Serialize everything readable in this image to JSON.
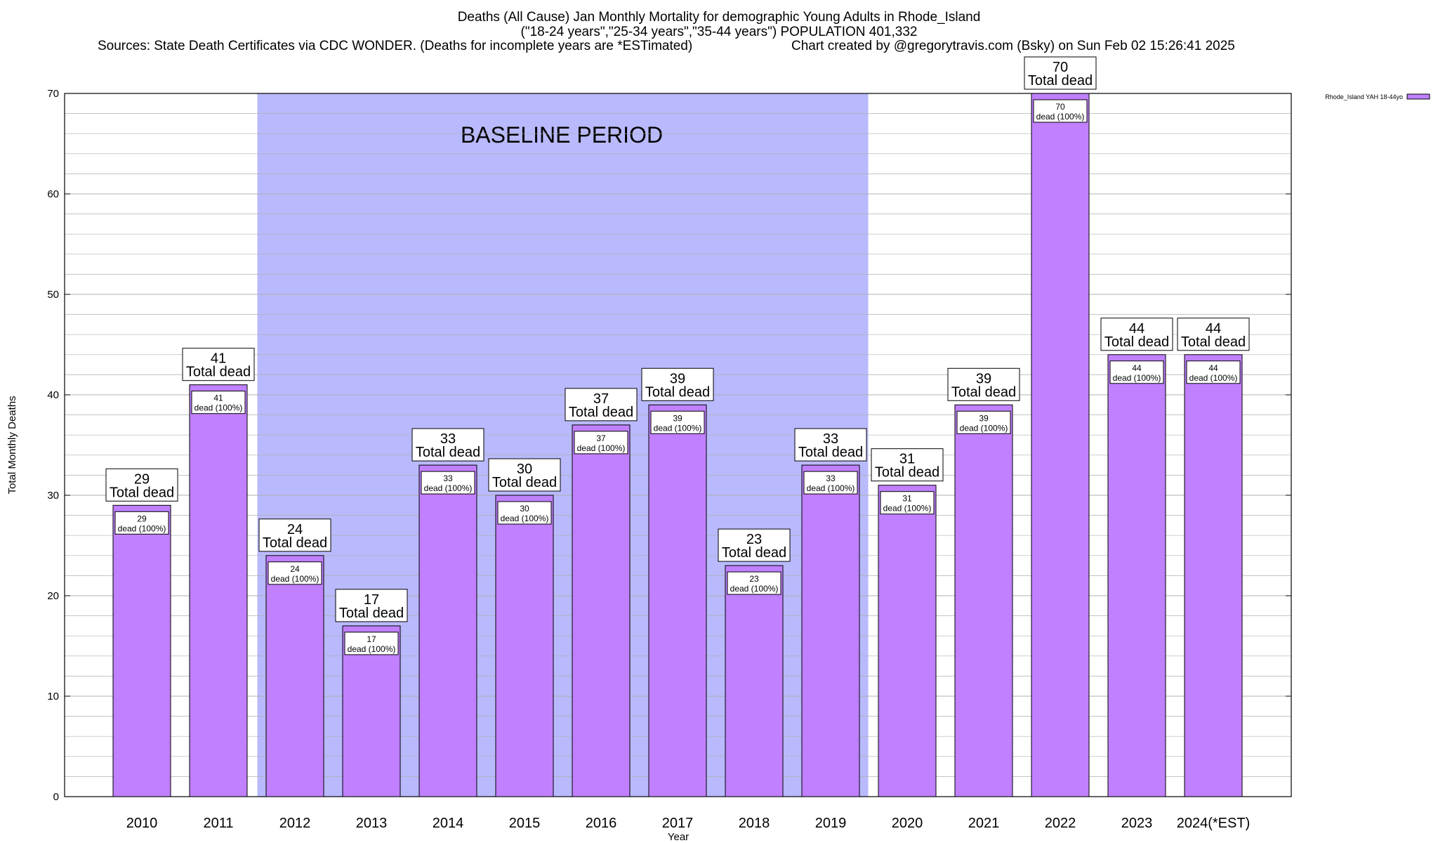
{
  "chart_data": {
    "type": "bar",
    "title_lines": [
      "Deaths (All Cause) Jan Monthly Mortality for demographic Young Adults in Rhode_Island",
      "(\"18-24 years\",\"25-34 years\",\"35-44 years\") POPULATION 401,332"
    ],
    "sources": "Sources: State Death Certificates via CDC WONDER. (Deaths for incomplete years are *ESTimated)",
    "credit": "Chart created by @gregorytravis.com (Bsky) on Sun Feb 02 15:26:41 2025",
    "xlabel": "Year",
    "ylabel": "Total Monthly Deaths",
    "ylim": [
      0,
      70
    ],
    "yticks": [
      0,
      10,
      20,
      30,
      40,
      50,
      60,
      70
    ],
    "grid": true,
    "categories": [
      "2010",
      "2011",
      "2012",
      "2013",
      "2014",
      "2015",
      "2016",
      "2017",
      "2018",
      "2019",
      "2020",
      "2021",
      "2022",
      "2023",
      "2024(*EST)"
    ],
    "series": [
      {
        "name": "Rhode_Island YAH 18-44yo",
        "values": [
          29,
          41,
          24,
          17,
          33,
          30,
          37,
          39,
          23,
          33,
          31,
          39,
          70,
          44,
          44
        ]
      }
    ],
    "total_label": "Total dead",
    "inner_label": "dead (100%)",
    "baseline": {
      "label": "BASELINE PERIOD",
      "from": "2012",
      "to": "2019"
    },
    "legend_position": "top-right",
    "colors": {
      "bar": "#c080ff",
      "baseline": "#b9b9fd",
      "grid": "#b0b0b0"
    }
  }
}
